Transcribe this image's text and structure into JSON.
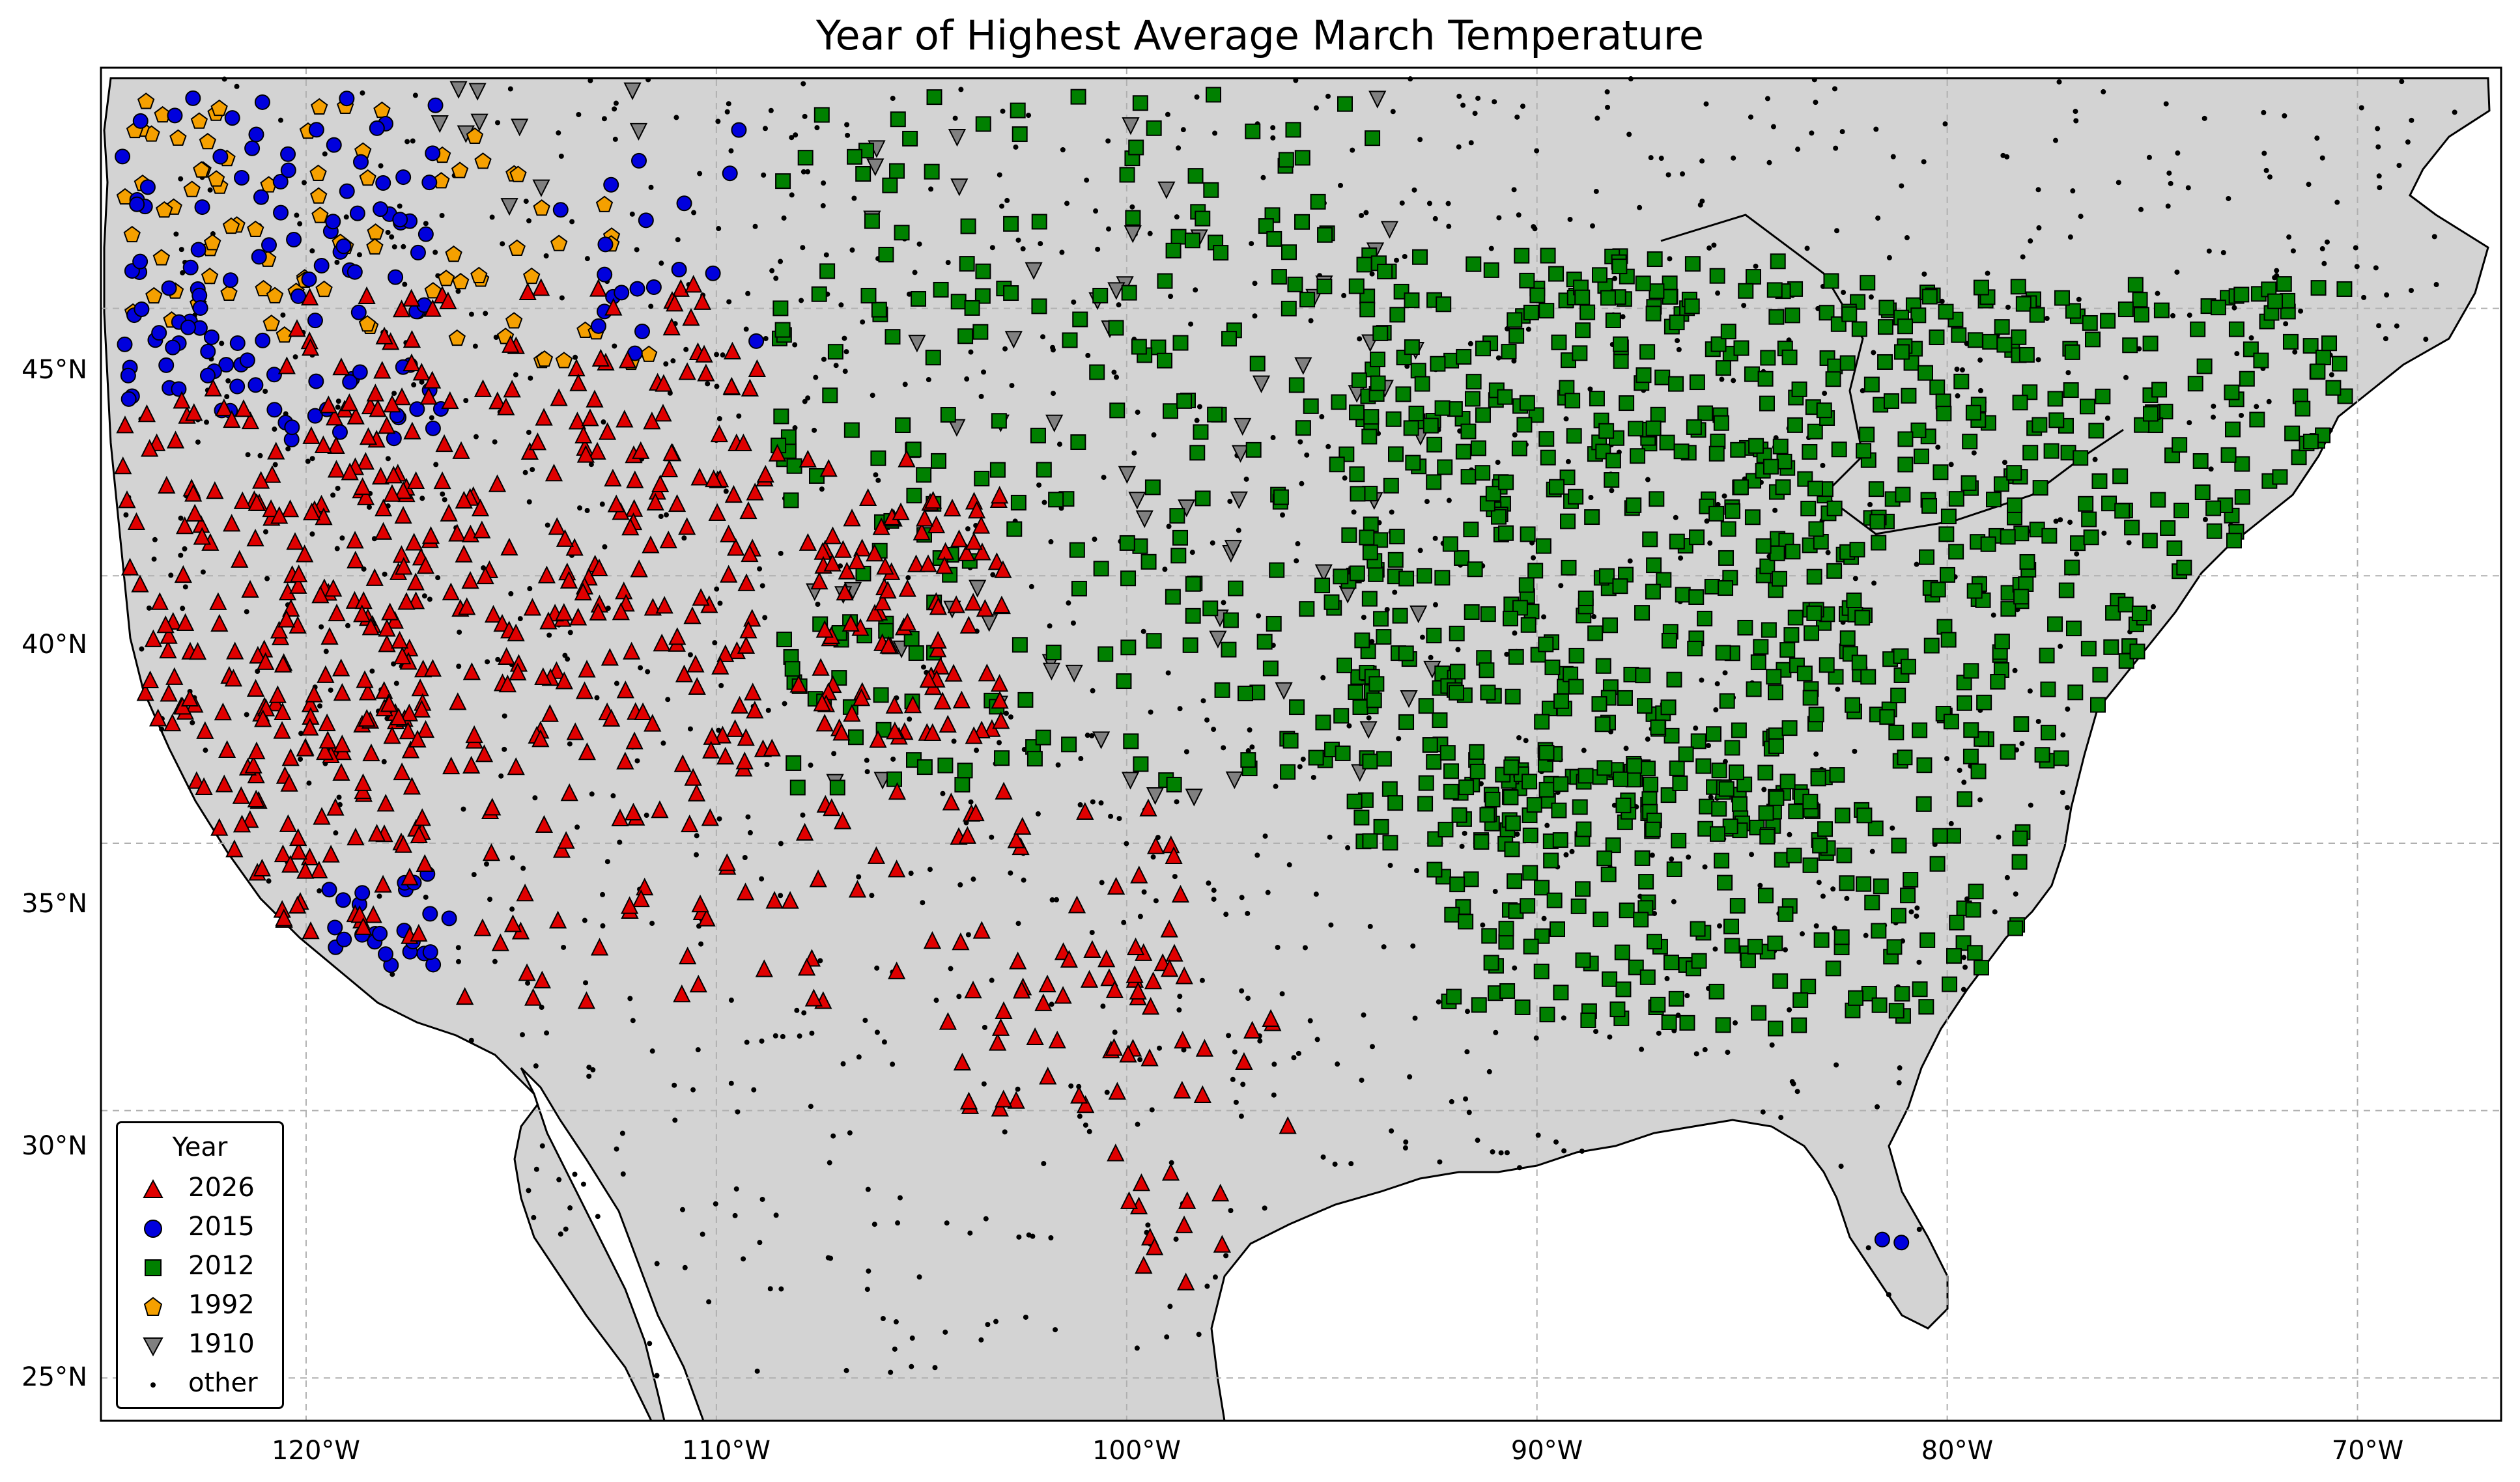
{
  "title": "Year of Highest Average March Temperature",
  "x_ticks": [
    "120°W",
    "110°W",
    "100°W",
    "90°W",
    "80°W",
    "70°W"
  ],
  "y_ticks": [
    "45°N",
    "40°N",
    "35°N",
    "30°N",
    "25°N"
  ],
  "legend": {
    "title": "Year",
    "items": [
      {
        "label": "2026",
        "marker": "triangle-up",
        "color": "#e00000"
      },
      {
        "label": "2015",
        "marker": "circle",
        "color": "#0000dd"
      },
      {
        "label": "2012",
        "marker": "square",
        "color": "#008000"
      },
      {
        "label": "1992",
        "marker": "pentagon",
        "color": "#f5a000"
      },
      {
        "label": "1910",
        "marker": "triangle-down",
        "color": "#808080"
      },
      {
        "label": "other",
        "marker": "dot",
        "color": "#000000"
      }
    ]
  },
  "colors": {
    "land": "#d3d3d3",
    "ocean": "#ffffff",
    "border": "#000000",
    "grid": "#b0b0b0"
  },
  "chart_data": {
    "type": "scatter",
    "projection": "plate carree",
    "xlim": [
      -125,
      -66.5
    ],
    "ylim": [
      24.2,
      49.5
    ],
    "grid": true,
    "legend_position": "lower-left",
    "series": [
      {
        "name": "2026",
        "regions": [
          {
            "lon": [
              -124.5,
              -117.0
            ],
            "lat": [
              33.0,
              43.5
            ],
            "n": 230
          },
          {
            "lon": [
              -120.5,
              -109.0
            ],
            "lat": [
              36.5,
              45.5
            ],
            "n": 180
          },
          {
            "lon": [
              -116.5,
              -104.5
            ],
            "lat": [
              32.0,
              42.5
            ],
            "n": 170
          },
          {
            "lon": [
              -107.5,
              -103.0
            ],
            "lat": [
              37.0,
              41.5
            ],
            "n": 80
          },
          {
            "lon": [
              -104.5,
              -98.5
            ],
            "lat": [
              30.0,
              36.0
            ],
            "n": 60
          },
          {
            "lon": [
              -100.5,
              -96.0
            ],
            "lat": [
              26.5,
              33.0
            ],
            "n": 30
          }
        ]
      },
      {
        "name": "2015",
        "regions": [
          {
            "lon": [
              -124.5,
              -116.5
            ],
            "lat": [
              42.5,
              49.0
            ],
            "n": 120
          },
          {
            "lon": [
              -119.5,
              -116.5
            ],
            "lat": [
              32.7,
              34.5
            ],
            "n": 25
          },
          {
            "lon": [
              -114.0,
              -108.5
            ],
            "lat": [
              44.0,
              48.5
            ],
            "n": 20
          },
          {
            "lon": [
              -82.0,
              -81.0
            ],
            "lat": [
              26.8,
              28.0
            ],
            "n": 2
          }
        ]
      },
      {
        "name": "2012",
        "regions": [
          {
            "lon": [
              -108.5,
              -94.0
            ],
            "lat": [
              36.0,
              49.0
            ],
            "n": 260
          },
          {
            "lon": [
              -94.5,
              -82.5
            ],
            "lat": [
              35.0,
              46.0
            ],
            "n": 520
          },
          {
            "lon": [
              -82.5,
              -70.0
            ],
            "lat": [
              36.5,
              45.5
            ],
            "n": 300
          },
          {
            "lon": [
              -92.5,
              -78.0
            ],
            "lat": [
              31.5,
              36.5
            ],
            "n": 200
          }
        ]
      },
      {
        "name": "1992",
        "regions": [
          {
            "lon": [
              -124.5,
              -118.0
            ],
            "lat": [
              44.5,
              49.0
            ],
            "n": 60
          },
          {
            "lon": [
              -117.0,
              -111.5
            ],
            "lat": [
              43.5,
              48.5
            ],
            "n": 30
          }
        ]
      },
      {
        "name": "1910",
        "regions": [
          {
            "lon": [
              -108.0,
              -92.5
            ],
            "lat": [
              35.5,
              49.0
            ],
            "n": 70
          },
          {
            "lon": [
              -117.0,
              -111.5
            ],
            "lat": [
              46.5,
              49.5
            ],
            "n": 10
          }
        ]
      },
      {
        "name": "other",
        "regions": [
          {
            "lon": [
              -124.5,
              -67.0
            ],
            "lat": [
              25.0,
              49.5
            ],
            "n": 1300
          }
        ]
      }
    ]
  }
}
